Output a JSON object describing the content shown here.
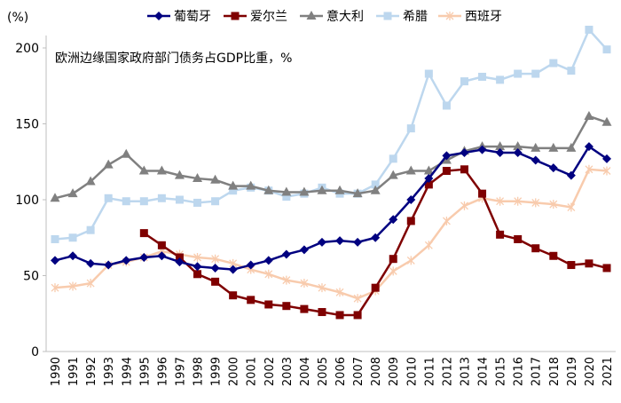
{
  "chart_data": {
    "type": "line",
    "unit_label": "(%)",
    "annotation": "欧洲边缘国家政府部门债务占GDP比重，%",
    "x": [
      1990,
      1991,
      1992,
      1993,
      1994,
      1995,
      1996,
      1997,
      1998,
      1999,
      2000,
      2001,
      2002,
      2003,
      2004,
      2005,
      2006,
      2007,
      2008,
      2009,
      2010,
      2011,
      2012,
      2013,
      2014,
      2015,
      2016,
      2017,
      2018,
      2019,
      2020,
      2021
    ],
    "ylim": [
      0,
      200
    ],
    "yticks": [
      0,
      50,
      100,
      150,
      200
    ],
    "grid": false,
    "legend": "top",
    "series": [
      {
        "name": "葡萄牙",
        "color": "#000080",
        "marker": "diamond",
        "values": [
          60,
          63,
          58,
          57,
          60,
          62,
          63,
          59,
          56,
          55,
          54,
          57,
          60,
          64,
          67,
          72,
          73,
          72,
          75,
          87,
          100,
          114,
          129,
          131,
          133,
          131,
          131,
          126,
          121,
          116,
          135,
          127
        ]
      },
      {
        "name": "爱尔兰",
        "color": "#7f0000",
        "marker": "square",
        "values": [
          null,
          null,
          null,
          null,
          null,
          78,
          70,
          62,
          51,
          46,
          37,
          34,
          31,
          30,
          28,
          26,
          24,
          24,
          42,
          61,
          86,
          110,
          119,
          120,
          104,
          77,
          74,
          68,
          63,
          57,
          58,
          55
        ]
      },
      {
        "name": "意大利",
        "color": "#808080",
        "marker": "triangle",
        "values": [
          101,
          104,
          112,
          123,
          130,
          119,
          119,
          116,
          114,
          113,
          109,
          109,
          106,
          105,
          105,
          106,
          106,
          104,
          106,
          116,
          119,
          119,
          126,
          132,
          135,
          135,
          135,
          134,
          134,
          134,
          155,
          151
        ]
      },
      {
        "name": "希腊",
        "color": "#bdd7ee",
        "marker": "square",
        "values": [
          74,
          75,
          80,
          101,
          99,
          99,
          101,
          100,
          98,
          99,
          106,
          108,
          106,
          102,
          104,
          108,
          104,
          104,
          110,
          127,
          147,
          183,
          162,
          178,
          181,
          179,
          183,
          183,
          190,
          185,
          212,
          199
        ]
      },
      {
        "name": "西班牙",
        "color": "#f8cbad",
        "marker": "star",
        "values": [
          42,
          43,
          45,
          57,
          59,
          62,
          66,
          64,
          62,
          61,
          58,
          54,
          51,
          47,
          45,
          42,
          39,
          35,
          40,
          53,
          60,
          70,
          86,
          96,
          101,
          99,
          99,
          98,
          97,
          95,
          120,
          119
        ]
      }
    ]
  }
}
